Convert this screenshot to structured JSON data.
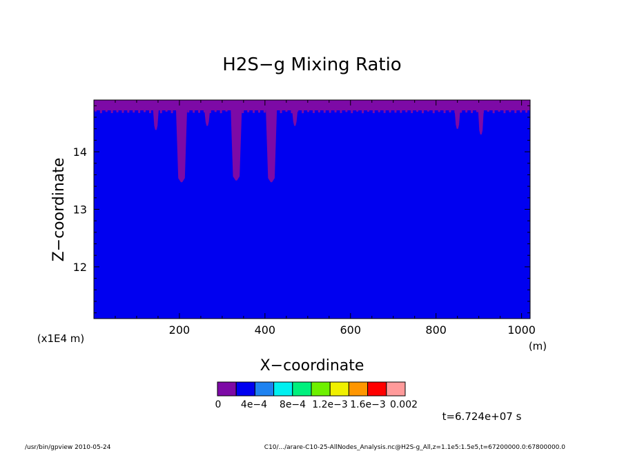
{
  "chart_data": {
    "type": "heatmap",
    "title": "H2S−g Mixing Ratio",
    "xlabel": "X−coordinate",
    "ylabel": "Z−coordinate",
    "x_unit": "(m)",
    "y_unit": "(x1E4 m)",
    "xlim": [
      0,
      1020
    ],
    "ylim": [
      11.1,
      14.9
    ],
    "x_ticks": [
      200,
      400,
      600,
      800,
      1000
    ],
    "y_ticks": [
      12,
      13,
      14
    ],
    "colorbar": {
      "colors": [
        "#7d0aa6",
        "#0000f0",
        "#1e82f0",
        "#00f0f0",
        "#00f07d",
        "#6ef000",
        "#f0f000",
        "#ff9600",
        "#ff0000",
        "#ff9a9a"
      ],
      "levels": [
        0,
        0.0002,
        0.0004,
        0.0006,
        0.0008,
        0.001,
        0.0012,
        0.0014,
        0.0016,
        0.0018,
        0.002
      ],
      "labels": [
        "0",
        "4e−4",
        "8e−4",
        "1.2e−3",
        "1.6e−3",
        "0.002"
      ]
    },
    "field": {
      "background_value_band": "0 – 2e−4",
      "top_band_value_band": "< 0 (purple)",
      "top_band_z": 14.72,
      "intrusions": [
        {
          "x": 145,
          "z_bottom": 14.38
        },
        {
          "x": 205,
          "z_bottom": 13.47
        },
        {
          "x": 265,
          "z_bottom": 14.45
        },
        {
          "x": 333,
          "z_bottom": 13.5
        },
        {
          "x": 415,
          "z_bottom": 13.47
        },
        {
          "x": 470,
          "z_bottom": 14.45
        },
        {
          "x": 850,
          "z_bottom": 14.4
        },
        {
          "x": 905,
          "z_bottom": 14.3
        }
      ]
    },
    "time_label": "t=6.724e+07 s"
  },
  "footer": {
    "left": "/usr/bin/gpview  2010-05-24",
    "right": "C10/.../arare-C10-25-AllNodes_Analysis.nc@H2S-g_All,z=1.1e5:1.5e5,t=67200000.0:67800000.0"
  }
}
